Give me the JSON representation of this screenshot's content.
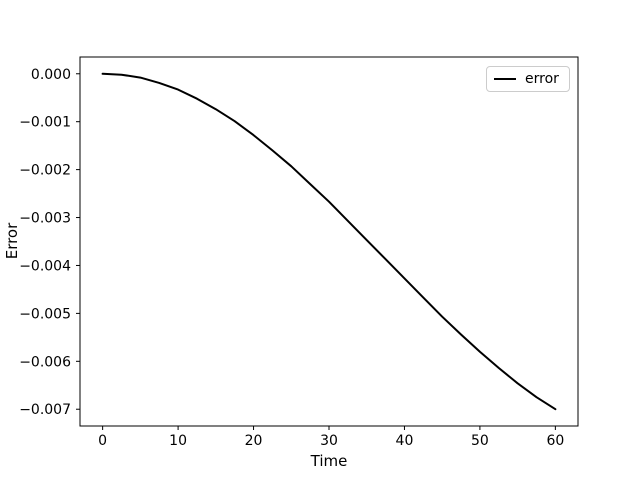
{
  "figure": {
    "background": "#ffffff"
  },
  "chart_data": {
    "type": "line",
    "title": "",
    "xlabel": "Time",
    "ylabel": "Error",
    "grid": false,
    "legend": {
      "position": "upper right",
      "entries": [
        {
          "label": "error",
          "color": "#000000"
        }
      ]
    },
    "xlim": [
      -3,
      63
    ],
    "ylim": [
      -0.00735,
      0.00035
    ],
    "x_ticks": {
      "values": [
        0,
        10,
        20,
        30,
        40,
        50,
        60
      ],
      "labels": [
        "0",
        "10",
        "20",
        "30",
        "40",
        "50",
        "60"
      ]
    },
    "y_ticks": {
      "values": [
        0,
        -0.001,
        -0.002,
        -0.003,
        -0.004,
        -0.005,
        -0.006,
        -0.007
      ],
      "labels": [
        "0.000",
        "−0.001",
        "−0.002",
        "−0.003",
        "−0.004",
        "−0.005",
        "−0.006",
        "−0.007"
      ]
    },
    "series": [
      {
        "name": "error",
        "color": "#000000",
        "line_width": 2,
        "x": [
          0,
          2.5,
          5,
          7.5,
          10,
          12.5,
          15,
          17.5,
          20,
          22.5,
          25,
          27.5,
          30,
          32.5,
          35,
          37.5,
          40,
          42.5,
          45,
          47.5,
          50,
          52.5,
          55,
          57.5,
          60
        ],
        "y": [
          0.0,
          -2e-05,
          -8e-05,
          -0.00019,
          -0.00033,
          -0.00052,
          -0.00074,
          -0.00099,
          -0.00128,
          -0.0016,
          -0.00193,
          -0.0023,
          -0.00267,
          -0.00307,
          -0.00347,
          -0.00387,
          -0.00427,
          -0.00467,
          -0.00507,
          -0.00544,
          -0.0058,
          -0.00614,
          -0.00646,
          -0.00675,
          -0.007
        ]
      }
    ],
    "spine_color": "#000000",
    "tick_color": "#000000"
  }
}
